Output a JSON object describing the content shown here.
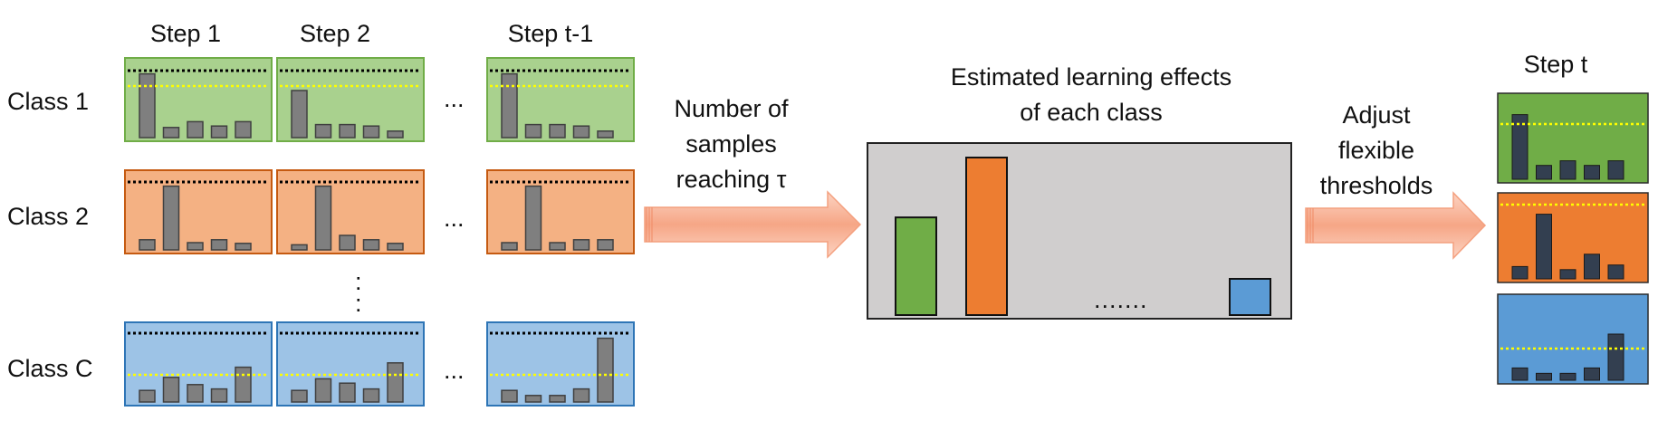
{
  "step_headers": [
    "Step 1",
    "Step 2",
    "Step t-1"
  ],
  "step_t_header": "Step t",
  "class_labels": [
    "Class 1",
    "Class 2",
    "Class C"
  ],
  "ellipsis": "...",
  "vertical_dots": ":",
  "arrow1_text": [
    "Number of",
    "samples",
    "reaching τ"
  ],
  "center_title": [
    "Estimated learning effects",
    "of each class"
  ],
  "center_dots": ".......",
  "arrow2_text": [
    "Adjust",
    "flexible",
    "thresholds"
  ],
  "colors": {
    "green_fill": "#a9d18e",
    "green_border": "#70ad47",
    "orange_fill": "#f4b183",
    "orange_border": "#c55a11",
    "blue_fill": "#9dc3e6",
    "blue_border": "#2e75b6",
    "bar_fill": "#7f7f7f",
    "center_fill": "#d0cece",
    "effect_green": "#70ad47",
    "effect_orange": "#ed7d31",
    "effect_blue": "#5b9bd5",
    "stept_green": "#70ad47",
    "stept_orange": "#ed7d31",
    "stept_blue": "#5b9bd5",
    "stept_bar": "#333f50",
    "arrow_fill": "#f8b49a",
    "black_threshold": "#000000",
    "yellow_threshold": "#ffff00"
  },
  "history_bars": [
    [
      [
        0.88,
        0.14,
        0.22,
        0.16,
        0.22
      ],
      [
        0.65,
        0.18,
        0.18,
        0.16,
        0.09
      ],
      [
        0.88,
        0.18,
        0.18,
        0.16,
        0.09
      ]
    ],
    [
      [
        0.14,
        0.88,
        0.1,
        0.14,
        0.09
      ],
      [
        0.07,
        0.88,
        0.2,
        0.14,
        0.09
      ],
      [
        0.1,
        0.88,
        0.1,
        0.14,
        0.14
      ]
    ],
    [
      [
        0.16,
        0.34,
        0.24,
        0.18,
        0.48
      ],
      [
        0.16,
        0.32,
        0.26,
        0.18,
        0.54
      ],
      [
        0.16,
        0.09,
        0.09,
        0.18,
        0.88
      ]
    ]
  ],
  "learning_effects": [
    0.62,
    1.0,
    0.23
  ],
  "stept_bars": [
    [
      0.84,
      0.18,
      0.24,
      0.18,
      0.24
    ],
    [
      0.16,
      0.84,
      0.12,
      0.32,
      0.18
    ],
    [
      0.16,
      0.09,
      0.09,
      0.16,
      0.6
    ]
  ]
}
